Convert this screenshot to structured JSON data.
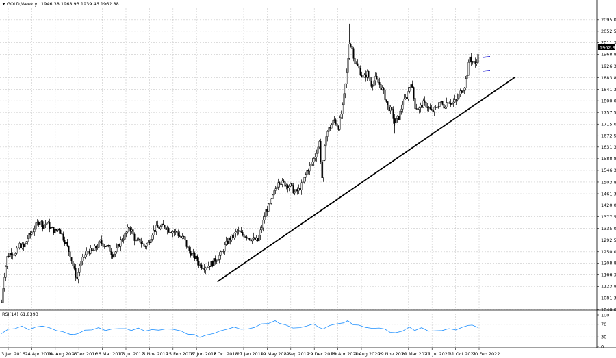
{
  "header": {
    "symbol": "GOLD,Weekly",
    "ohlc": "1946.38 1968.93 1939.46 1962.88"
  },
  "indicator": {
    "label": "RSI(14) 61.8393"
  },
  "colors": {
    "background": "#ffffff",
    "grid": "#c8c8c8",
    "candle": "#000000",
    "trendline": "#000000",
    "marker": "#0000cc",
    "rsi": "#1e90ff",
    "price_box_bg": "#000000",
    "price_box_fg": "#ffffff"
  },
  "chart_data": [
    {
      "type": "candlestick",
      "price_label": "1962.88",
      "ylim": [
        1040.0,
        2117.0
      ],
      "grid": true,
      "y_ticks": [
        "2095.00",
        "2052.55",
        "2011.30",
        "1968.85",
        "1926.30",
        "1883.80",
        "1841.35",
        "1800.00",
        "1757.55",
        "1715.00",
        "1672.55",
        "1631.30",
        "1588.80",
        "1546.30",
        "1503.80",
        "1461.30",
        "1420.00",
        "1377.55",
        "1335.00",
        "1292.55",
        "1250.00",
        "1208.80",
        "1166.30",
        "1123.80",
        "1081.30",
        "1040.00"
      ],
      "x_ticks": [
        "3 Jan 2016",
        "24 Apr 2016",
        "14 Aug 2016",
        "4 Dec 2016",
        "26 Mar 2017",
        "16 Jul 2017",
        "5 Nov 2017",
        "25 Feb 2018",
        "17 Jun 2018",
        "7 Oct 2018",
        "27 Jan 2019",
        "19 May 2019",
        "8 Sep 2019",
        "29 Dec 2019",
        "19 Apr 2020",
        "9 Aug 2020",
        "29 Nov 2020",
        "21 Mar 2021",
        "11 Jul 2021",
        "31 Oct 2021",
        "20 Feb 2022"
      ],
      "close_path": [
        [
          0,
          1065
        ],
        [
          3,
          1150
        ],
        [
          8,
          1230
        ],
        [
          14,
          1250
        ],
        [
          20,
          1240
        ],
        [
          26,
          1275
        ],
        [
          32,
          1265
        ],
        [
          38,
          1300
        ],
        [
          44,
          1320
        ],
        [
          50,
          1345
        ],
        [
          56,
          1365
        ],
        [
          60,
          1345
        ],
        [
          66,
          1355
        ],
        [
          72,
          1335
        ],
        [
          78,
          1325
        ],
        [
          84,
          1335
        ],
        [
          90,
          1300
        ],
        [
          94,
          1280
        ],
        [
          100,
          1240
        ],
        [
          106,
          1180
        ],
        [
          110,
          1150
        ],
        [
          114,
          1200
        ],
        [
          120,
          1230
        ],
        [
          126,
          1255
        ],
        [
          132,
          1250
        ],
        [
          138,
          1265
        ],
        [
          144,
          1285
        ],
        [
          150,
          1275
        ],
        [
          156,
          1265
        ],
        [
          162,
          1240
        ],
        [
          168,
          1255
        ],
        [
          174,
          1290
        ],
        [
          180,
          1310
        ],
        [
          186,
          1340
        ],
        [
          190,
          1325
        ],
        [
          196,
          1285
        ],
        [
          202,
          1290
        ],
        [
          208,
          1270
        ],
        [
          214,
          1280
        ],
        [
          220,
          1320
        ],
        [
          226,
          1335
        ],
        [
          232,
          1340
        ],
        [
          238,
          1345
        ],
        [
          244,
          1330
        ],
        [
          250,
          1325
        ],
        [
          256,
          1320
        ],
        [
          262,
          1300
        ],
        [
          266,
          1300
        ],
        [
          272,
          1260
        ],
        [
          278,
          1240
        ],
        [
          284,
          1225
        ],
        [
          290,
          1200
        ],
        [
          296,
          1195
        ],
        [
          302,
          1200
        ],
        [
          308,
          1210
        ],
        [
          314,
          1225
        ],
        [
          320,
          1240
        ],
        [
          326,
          1270
        ],
        [
          332,
          1295
        ],
        [
          338,
          1305
        ],
        [
          344,
          1325
        ],
        [
          350,
          1315
        ],
        [
          356,
          1310
        ],
        [
          362,
          1300
        ],
        [
          368,
          1295
        ],
        [
          374,
          1290
        ],
        [
          380,
          1340
        ],
        [
          386,
          1400
        ],
        [
          392,
          1420
        ],
        [
          398,
          1465
        ],
        [
          404,
          1510
        ],
        [
          410,
          1500
        ],
        [
          416,
          1495
        ],
        [
          422,
          1490
        ],
        [
          428,
          1465
        ],
        [
          434,
          1475
        ],
        [
          440,
          1500
        ],
        [
          446,
          1545
        ],
        [
          452,
          1565
        ],
        [
          458,
          1600
        ],
        [
          464,
          1650
        ],
        [
          468,
          1520
        ],
        [
          474,
          1680
        ],
        [
          480,
          1705
        ],
        [
          486,
          1730
        ],
        [
          492,
          1705
        ],
        [
          498,
          1775
        ],
        [
          504,
          1900
        ],
        [
          508,
          2015
        ],
        [
          512,
          1990
        ],
        [
          516,
          1940
        ],
        [
          522,
          1915
        ],
        [
          528,
          1880
        ],
        [
          534,
          1900
        ],
        [
          540,
          1860
        ],
        [
          546,
          1880
        ],
        [
          552,
          1860
        ],
        [
          558,
          1830
        ],
        [
          564,
          1780
        ],
        [
          570,
          1760
        ],
        [
          574,
          1720
        ],
        [
          580,
          1740
        ],
        [
          586,
          1790
        ],
        [
          592,
          1815
        ],
        [
          598,
          1870
        ],
        [
          604,
          1780
        ],
        [
          610,
          1770
        ],
        [
          616,
          1790
        ],
        [
          622,
          1780
        ],
        [
          628,
          1760
        ],
        [
          634,
          1770
        ],
        [
          640,
          1795
        ],
        [
          646,
          1780
        ],
        [
          652,
          1800
        ],
        [
          658,
          1790
        ],
        [
          664,
          1800
        ],
        [
          670,
          1830
        ],
        [
          676,
          1855
        ],
        [
          680,
          1900
        ],
        [
          684,
          1960
        ],
        [
          688,
          1940
        ],
        [
          692,
          1935
        ],
        [
          696,
          1962.88
        ]
      ],
      "trendline": {
        "from": [
          "7 Oct 2018",
          1141
        ],
        "to": [
          "20 Feb 2022",
          1885
        ]
      },
      "markers": [
        {
          "at": "20 Feb 2022",
          "upper": 1958,
          "lower": 1908
        }
      ]
    },
    {
      "type": "line",
      "name": "RSI(14)",
      "ylim": [
        0,
        100
      ],
      "y_ticks": [
        "100",
        "70",
        "30",
        "0"
      ],
      "values": [
        [
          0,
          42
        ],
        [
          10,
          53
        ],
        [
          20,
          58
        ],
        [
          30,
          63
        ],
        [
          40,
          55
        ],
        [
          50,
          60
        ],
        [
          60,
          66
        ],
        [
          70,
          58
        ],
        [
          80,
          52
        ],
        [
          90,
          45
        ],
        [
          100,
          40
        ],
        [
          106,
          36
        ],
        [
          112,
          42
        ],
        [
          122,
          50
        ],
        [
          132,
          54
        ],
        [
          142,
          58
        ],
        [
          152,
          52
        ],
        [
          162,
          54
        ],
        [
          172,
          58
        ],
        [
          182,
          55
        ],
        [
          190,
          52
        ],
        [
          200,
          57
        ],
        [
          210,
          50
        ],
        [
          220,
          52
        ],
        [
          230,
          53
        ],
        [
          240,
          54
        ],
        [
          250,
          56
        ],
        [
          262,
          48
        ],
        [
          272,
          40
        ],
        [
          282,
          36
        ],
        [
          290,
          30
        ],
        [
          300,
          35
        ],
        [
          310,
          42
        ],
        [
          320,
          48
        ],
        [
          330,
          56
        ],
        [
          340,
          60
        ],
        [
          350,
          56
        ],
        [
          360,
          54
        ],
        [
          370,
          62
        ],
        [
          380,
          70
        ],
        [
          390,
          74
        ],
        [
          400,
          80
        ],
        [
          406,
          75
        ],
        [
          416,
          66
        ],
        [
          426,
          60
        ],
        [
          436,
          58
        ],
        [
          446,
          66
        ],
        [
          456,
          70
        ],
        [
          464,
          62
        ],
        [
          470,
          54
        ],
        [
          480,
          68
        ],
        [
          490,
          70
        ],
        [
          500,
          76
        ],
        [
          506,
          80
        ],
        [
          514,
          70
        ],
        [
          522,
          66
        ],
        [
          532,
          62
        ],
        [
          542,
          56
        ],
        [
          552,
          60
        ],
        [
          560,
          54
        ],
        [
          568,
          46
        ],
        [
          576,
          42
        ],
        [
          586,
          50
        ],
        [
          596,
          60
        ],
        [
          604,
          52
        ],
        [
          614,
          58
        ],
        [
          624,
          50
        ],
        [
          634,
          48
        ],
        [
          644,
          52
        ],
        [
          654,
          55
        ],
        [
          664,
          54
        ],
        [
          674,
          60
        ],
        [
          682,
          68
        ],
        [
          688,
          66
        ],
        [
          696,
          62
        ]
      ]
    }
  ]
}
